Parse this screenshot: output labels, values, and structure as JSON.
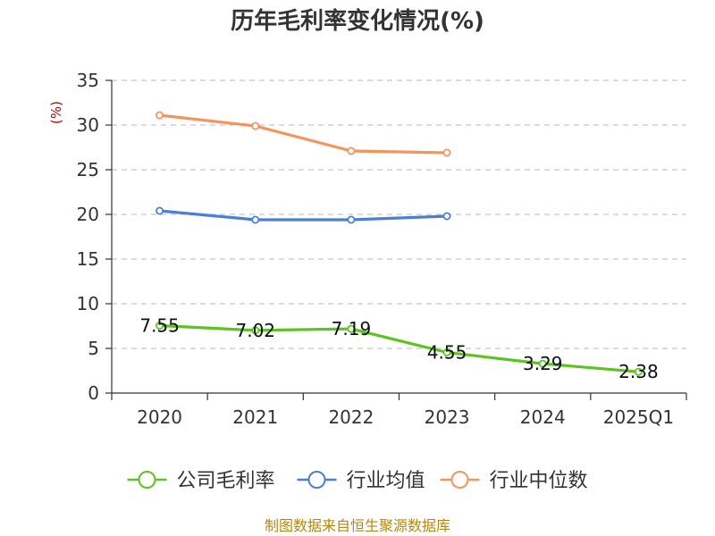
{
  "chart_data": {
    "type": "line",
    "title": "历年毛利率变化情况(%)",
    "ylabel": "(%)",
    "categories": [
      "2020",
      "2021",
      "2022",
      "2023",
      "2024",
      "2025Q1"
    ],
    "ylim": [
      0,
      35
    ],
    "yticks": [
      0,
      5,
      10,
      15,
      20,
      25,
      30,
      35
    ],
    "grid": true,
    "legend_position": "bottom",
    "series": [
      {
        "name": "公司毛利率",
        "color": "#5cc41f",
        "values": [
          7.55,
          7.02,
          7.19,
          4.55,
          3.29,
          2.38
        ],
        "labels": [
          "7.55",
          "7.02",
          "7.19",
          "4.55",
          "3.29",
          "2.38"
        ],
        "show_labels": true
      },
      {
        "name": "行业均值",
        "color": "#4a7fd8",
        "values": [
          20.4,
          19.4,
          19.4,
          19.8,
          null,
          null
        ],
        "show_labels": false
      },
      {
        "name": "行业中位数",
        "color": "#f7935a",
        "values": [
          31.1,
          29.9,
          27.1,
          26.9,
          null,
          null
        ],
        "show_labels": false
      }
    ]
  },
  "footer": {
    "source": "制图数据来自恒生聚源数据库"
  }
}
